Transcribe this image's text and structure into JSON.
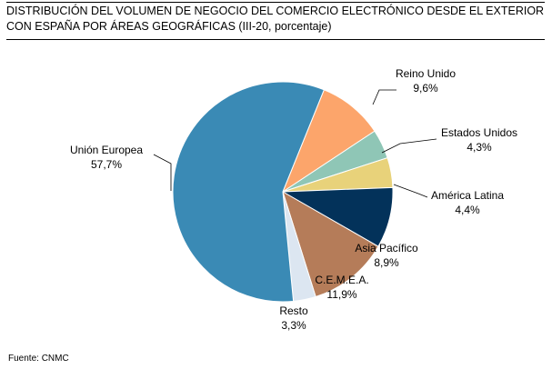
{
  "header": {
    "title": "DISTRIBUCIÓN DEL VOLUMEN DE NEGOCIO DEL COMERCIO ELECTRÓNICO DESDE EL EXTERIOR CON ESPAÑA POR ÁREAS GEOGRÁFICAS (III-20, porcentaje)"
  },
  "footer": {
    "source": "Fuente: CNMC"
  },
  "chart_data": {
    "type": "pie",
    "title": "DISTRIBUCIÓN DEL VOLUMEN DE NEGOCIO DEL COMERCIO ELECTRÓNICO DESDE EL EXTERIOR CON ESPAÑA POR ÁREAS GEOGRÁFICAS (III-20, porcentaje)",
    "slices": [
      {
        "name": "Unión Europea",
        "value": 57.7,
        "label": "57,7%",
        "color": "#3a8ab5"
      },
      {
        "name": "Reino Unido",
        "value": 9.6,
        "label": "9,6%",
        "color": "#fca56b"
      },
      {
        "name": "Estados Unidos",
        "value": 4.3,
        "label": "4,3%",
        "color": "#8fc6b6"
      },
      {
        "name": "América Latina",
        "value": 4.4,
        "label": "4,4%",
        "color": "#e8d27a"
      },
      {
        "name": "Asia Pacífico",
        "value": 8.9,
        "label": "8,9%",
        "color": "#03325a"
      },
      {
        "name": "C.E.M.E.A.",
        "value": 11.9,
        "label": "11,9%",
        "color": "#b57c59"
      },
      {
        "name": "Resto",
        "value": 3.3,
        "label": "3,3%",
        "color": "#dce6f1"
      }
    ],
    "legend": "none",
    "data_labels": "outside with leader lines"
  }
}
